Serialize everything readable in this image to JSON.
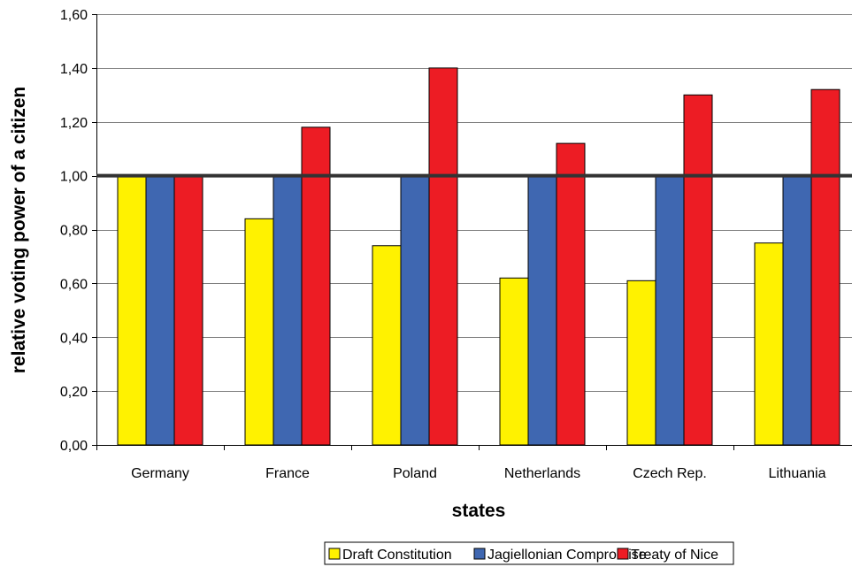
{
  "chart_data": {
    "type": "bar",
    "categories": [
      "Germany",
      "France",
      "Poland",
      "Netherlands",
      "Czech Rep.",
      "Lithuania"
    ],
    "series": [
      {
        "name": "Draft Constitution",
        "color": "#FFF200",
        "values": [
          1.0,
          0.84,
          0.74,
          0.62,
          0.61,
          0.75
        ]
      },
      {
        "name": "Jagiellonian Compromise",
        "color": "#3F67B1",
        "values": [
          1.0,
          1.0,
          1.0,
          1.0,
          1.0,
          1.0
        ]
      },
      {
        "name": "Treaty of Nice",
        "color": "#ED1C24",
        "values": [
          1.0,
          1.18,
          1.4,
          1.12,
          1.3,
          1.32
        ]
      }
    ],
    "title": "",
    "xlabel": "states",
    "ylabel": "relative voting power of a citizen",
    "ylim": [
      0,
      1.6
    ],
    "yticks": [
      "0,00",
      "0,20",
      "0,40",
      "0,60",
      "0,80",
      "1,00",
      "1,20",
      "1,40",
      "1,60"
    ],
    "reference_line": 1.0,
    "grid": true,
    "legend_position": "bottom"
  }
}
